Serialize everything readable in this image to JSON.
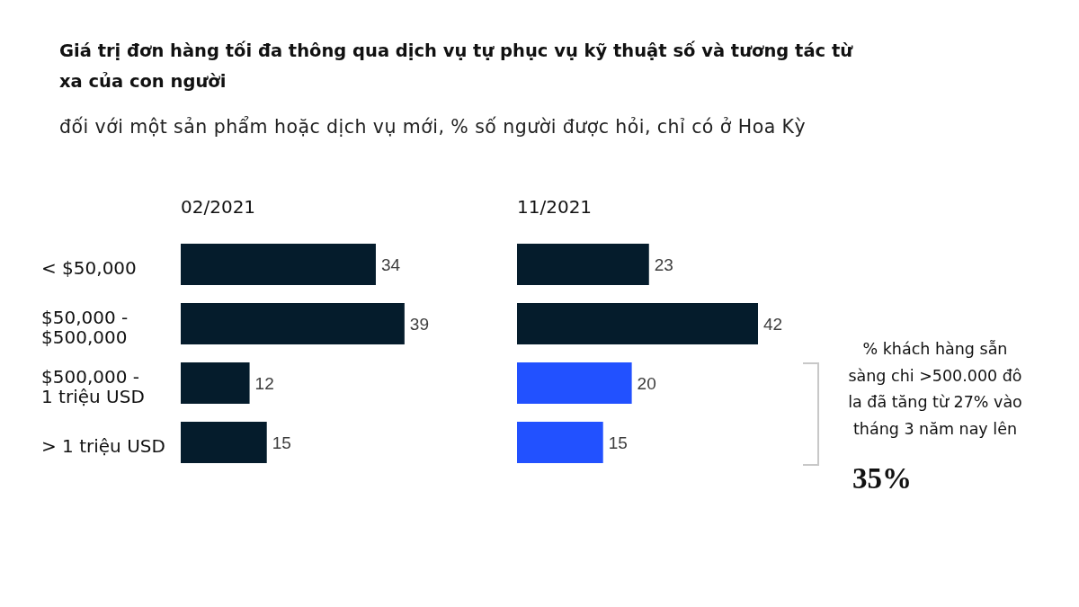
{
  "chart_data": [
    {
      "type": "other",
      "title": "Giá trị đơn hàng tối đa thông qua dịch vụ tự phục vụ kỹ thuật số và tương tác từ xa của con người",
      "subtitle": "đối với một sản phẩm hoặc dịch vụ mới, % số người được hỏi, chỉ có ở Hoa Kỳ"
    },
    {
      "type": "bar",
      "orientation": "horizontal",
      "title": "02/2021",
      "categories": [
        "< $50,000",
        "$50,000 - $500,000",
        "$500,000 - 1 triệu USD",
        "> 1 triệu USD"
      ],
      "values": [
        34,
        39,
        12,
        15
      ],
      "color": "#051c2c",
      "data_labels": true,
      "tick_labels": "y"
    },
    {
      "type": "bar",
      "orientation": "horizontal",
      "title": "11/2021",
      "categories": [
        "< $50,000",
        "$50,000 - $500,000",
        "$500,000 - 1 triệu USD",
        "> 1 triệu USD"
      ],
      "values": [
        23,
        42,
        20,
        15
      ],
      "colors": [
        "#051c2c",
        "#051c2c",
        "#2251ff",
        "#2251ff"
      ],
      "data_labels": true,
      "tick_labels": false,
      "annotations": [
        "% khách hàng sẵn sàng chi >500.000 đô la đã tăng từ 27% vào tháng 3 năm nay lên",
        "35%"
      ]
    }
  ]
}
